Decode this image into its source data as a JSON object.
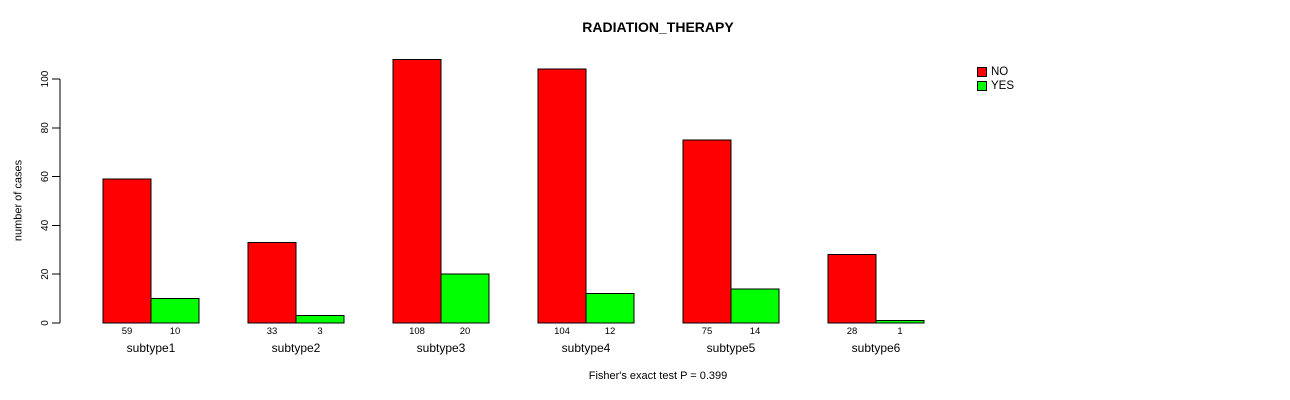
{
  "chart_data": {
    "type": "bar",
    "title": "RADIATION_THERAPY",
    "ylabel": "number of cases",
    "xlabel": "",
    "categories": [
      "subtype1",
      "subtype2",
      "subtype3",
      "subtype4",
      "subtype5",
      "subtype6"
    ],
    "series": [
      {
        "name": "NO",
        "color": "#FF0000",
        "values": [
          59,
          33,
          108,
          104,
          75,
          28
        ]
      },
      {
        "name": "YES",
        "color": "#00FF00",
        "values": [
          10,
          3,
          20,
          12,
          14,
          1
        ]
      }
    ],
    "value_labels_shown": true,
    "yticks": [
      0,
      20,
      40,
      60,
      80,
      100
    ],
    "ylim": [
      0,
      100
    ],
    "grid": false,
    "legend": {
      "position": "top-right",
      "entries": [
        "NO",
        "YES"
      ]
    },
    "footnote": "Fisher's exact test P = 0.399",
    "colors": {
      "axis": "#000000",
      "text": "#000000",
      "background": "#ffffff"
    }
  }
}
